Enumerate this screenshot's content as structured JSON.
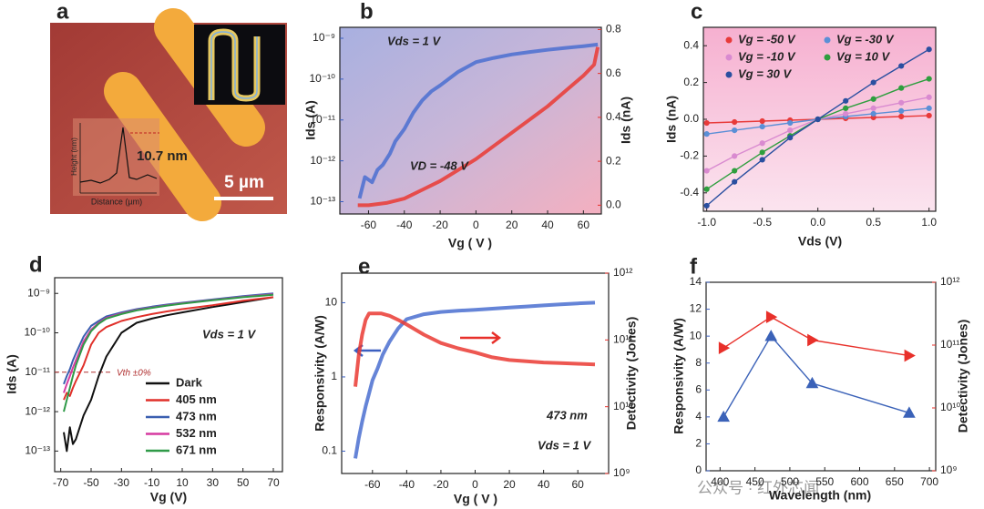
{
  "panel_a": {
    "panel": "a",
    "height_label": "10.7 nm",
    "scale_bar": "5 µm",
    "inset_ylabel": "Height (nm)",
    "inset_xlabel": "Distance (µm)"
  },
  "chart_data": [
    {
      "type": "line",
      "panel": "b",
      "xlabel": "Vg ( V )",
      "ylabel": "Ids (A)",
      "y2label": "Ids (nA)",
      "ycolor": "#3b5fc0",
      "y2color": "#e8302a",
      "annotations": [
        "Vds = 1 V",
        "VD = -48 V"
      ],
      "xlim": [
        -76,
        70
      ],
      "xticks": [
        -60,
        -40,
        -20,
        0,
        20,
        40,
        60
      ],
      "ylog": true,
      "ylim": [
        5e-14,
        1.85e-09
      ],
      "yticks": [
        {
          "value": 1e-13,
          "label": "10⁻¹³"
        },
        {
          "value": 1e-12,
          "label": "10⁻¹²"
        },
        {
          "value": 1e-11,
          "label": "10⁻¹¹"
        },
        {
          "value": 1e-10,
          "label": "10⁻¹⁰"
        },
        {
          "value": 1e-09,
          "label": "10⁻⁹"
        }
      ],
      "y2lim": [
        -0.04,
        0.81
      ],
      "y2ticks": [
        {
          "value": 0,
          "label": "0.0"
        },
        0.2,
        0.4,
        0.6,
        0.8
      ],
      "series": [
        {
          "color": "#4a6fd0",
          "style": "line",
          "x": [
            -65,
            -62,
            -58,
            -55,
            -52,
            -48,
            -45,
            -40,
            -35,
            -30,
            -25,
            -20,
            -10,
            0,
            10,
            20,
            30,
            40,
            50,
            60,
            68
          ],
          "values": [
            1.2e-13,
            4e-13,
            3e-13,
            6e-13,
            8e-13,
            1.5e-12,
            3e-12,
            6e-12,
            1.5e-11,
            3e-11,
            5e-11,
            7e-11,
            1.5e-10,
            2.6e-10,
            3.3e-10,
            4e-10,
            4.6e-10,
            5.2e-10,
            5.8e-10,
            6.4e-10,
            7e-10
          ]
        },
        {
          "color": "#ea3a32",
          "style": "line",
          "axis": "y2",
          "x": [
            -66,
            -60,
            -50,
            -40,
            -30,
            -20,
            -10,
            0,
            10,
            20,
            30,
            40,
            50,
            60,
            66,
            68
          ],
          "values": [
            0,
            0,
            0.01,
            0.03,
            0.07,
            0.11,
            0.16,
            0.21,
            0.27,
            0.33,
            0.39,
            0.45,
            0.52,
            0.59,
            0.64,
            0.72
          ]
        }
      ]
    },
    {
      "type": "line",
      "panel": "c",
      "xlabel": "Vds (V)",
      "ylabel": "Ids (nA)",
      "legend": "upper left",
      "xlim": [
        -1.03,
        1.06
      ],
      "xticks": [
        {
          "value": -1,
          "label": "-1.0"
        },
        -0.5,
        {
          "value": 0,
          "label": "0.0"
        },
        0.5,
        {
          "value": 1,
          "label": "1.0"
        }
      ],
      "ylim": [
        -0.5,
        0.5
      ],
      "yticks": [
        -0.4,
        -0.2,
        {
          "value": 0,
          "label": "0.0"
        },
        0.2,
        0.4
      ],
      "series": [
        {
          "name": "Vg = -50 V",
          "color": "#e83a3a",
          "style": "line-markers",
          "marker": "circle",
          "x": [
            -1,
            -0.75,
            -0.5,
            -0.25,
            0,
            0.25,
            0.5,
            0.75,
            1
          ],
          "values": [
            -0.02,
            -0.015,
            -0.01,
            -0.005,
            0,
            0.005,
            0.01,
            0.015,
            0.02
          ]
        },
        {
          "name": "Vg = -30 V",
          "color": "#5b8fd6",
          "style": "line-markers",
          "marker": "circle",
          "x": [
            -1,
            -0.75,
            -0.5,
            -0.25,
            0,
            0.25,
            0.5,
            0.75,
            1
          ],
          "values": [
            -0.08,
            -0.06,
            -0.04,
            -0.02,
            0,
            0.015,
            0.03,
            0.045,
            0.06
          ]
        },
        {
          "name": "Vg = -10 V",
          "color": "#d98ad0",
          "style": "line-markers",
          "marker": "circle",
          "x": [
            -1,
            -0.75,
            -0.5,
            -0.25,
            0,
            0.25,
            0.5,
            0.75,
            1
          ],
          "values": [
            -0.28,
            -0.2,
            -0.13,
            -0.06,
            0,
            0.03,
            0.06,
            0.09,
            0.12
          ]
        },
        {
          "name": "Vg = 10 V",
          "color": "#2e9e3e",
          "style": "line-markers",
          "marker": "circle",
          "x": [
            -1,
            -0.75,
            -0.5,
            -0.25,
            0,
            0.25,
            0.5,
            0.75,
            1
          ],
          "values": [
            -0.38,
            -0.28,
            -0.18,
            -0.09,
            0,
            0.06,
            0.11,
            0.17,
            0.22
          ]
        },
        {
          "name": "Vg = 30 V",
          "color": "#2a4fa0",
          "style": "line-markers",
          "marker": "circle",
          "x": [
            -1,
            -0.75,
            -0.5,
            -0.25,
            0,
            0.25,
            0.5,
            0.75,
            1
          ],
          "values": [
            -0.47,
            -0.34,
            -0.22,
            -0.1,
            0,
            0.1,
            0.2,
            0.29,
            0.38
          ]
        }
      ]
    },
    {
      "type": "line",
      "panel": "d",
      "xlabel": "Vg (V)",
      "ylabel": "Ids (A)",
      "legend": "lower right",
      "annotations": [
        "Vds = 1 V",
        "Vth ±0%"
      ],
      "ref_value": 1e-11,
      "xlim": [
        -74,
        76
      ],
      "xticks": [
        -70,
        -50,
        -30,
        -10,
        10,
        30,
        50,
        70
      ],
      "ylog": true,
      "ylim": [
        3e-14,
        2.5e-09
      ],
      "yticks": [
        {
          "value": 1e-13,
          "label": "10⁻¹³"
        },
        {
          "value": 1e-12,
          "label": "10⁻¹²"
        },
        {
          "value": 1e-11,
          "label": "10⁻¹¹"
        },
        {
          "value": 1e-10,
          "label": "10⁻¹⁰"
        },
        {
          "value": 1e-09,
          "label": "10⁻⁹"
        }
      ],
      "series": [
        {
          "name": "Dark",
          "color": "#111111",
          "style": "line",
          "x": [
            -68,
            -66,
            -64,
            -62,
            -60,
            -55,
            -50,
            -45,
            -40,
            -30,
            -20,
            -10,
            0,
            10,
            30,
            50,
            70
          ],
          "values": [
            3e-13,
            1e-13,
            4e-13,
            1.5e-13,
            2e-13,
            8e-13,
            2e-12,
            8e-12,
            2.5e-11,
            1e-10,
            1.8e-10,
            2.3e-10,
            2.8e-10,
            3.3e-10,
            4.5e-10,
            6e-10,
            8e-10
          ]
        },
        {
          "name": "405 nm",
          "color": "#e0302a",
          "style": "line",
          "x": [
            -68,
            -66,
            -64,
            -62,
            -60,
            -55,
            -50,
            -45,
            -40,
            -30,
            -20,
            -10,
            0,
            10,
            30,
            50,
            70
          ],
          "values": [
            2e-12,
            3e-12,
            2.5e-12,
            4e-12,
            6e-12,
            1.5e-11,
            5e-11,
            1e-10,
            1.4e-10,
            2e-10,
            2.5e-10,
            3e-10,
            3.5e-10,
            4e-10,
            5e-10,
            6.5e-10,
            8e-10
          ]
        },
        {
          "name": "473 nm",
          "color": "#3a5fb0",
          "style": "line",
          "x": [
            -68,
            -66,
            -64,
            -62,
            -60,
            -55,
            -50,
            -45,
            -40,
            -30,
            -20,
            -10,
            0,
            10,
            30,
            50,
            70
          ],
          "values": [
            5e-12,
            8e-12,
            1.2e-11,
            2e-11,
            3e-11,
            8e-11,
            1.5e-10,
            2e-10,
            2.6e-10,
            3.3e-10,
            4e-10,
            4.6e-10,
            5.2e-10,
            5.8e-10,
            7e-10,
            8.5e-10,
            1e-09
          ]
        },
        {
          "name": "532 nm",
          "color": "#d63aa0",
          "style": "line",
          "x": [
            -68,
            -66,
            -64,
            -62,
            -60,
            -55,
            -50,
            -45,
            -40,
            -30,
            -20,
            -10,
            0,
            10,
            30,
            50,
            70
          ],
          "values": [
            3e-12,
            5e-12,
            8e-12,
            1.3e-11,
            2e-11,
            6e-11,
            1.2e-10,
            1.8e-10,
            2.4e-10,
            3.1e-10,
            3.8e-10,
            4.4e-10,
            5e-10,
            5.6e-10,
            6.8e-10,
            8.2e-10,
            9.5e-10
          ]
        },
        {
          "name": "671 nm",
          "color": "#2f9a48",
          "style": "line",
          "x": [
            -68,
            -66,
            -64,
            -62,
            -60,
            -55,
            -50,
            -45,
            -40,
            -30,
            -20,
            -10,
            0,
            10,
            30,
            50,
            70
          ],
          "values": [
            1e-12,
            2e-12,
            4e-12,
            8e-12,
            1.5e-11,
            5e-11,
            1.1e-10,
            1.7e-10,
            2.3e-10,
            3e-10,
            3.7e-10,
            4.3e-10,
            4.9e-10,
            5.5e-10,
            6.7e-10,
            8e-10,
            9.2e-10
          ]
        }
      ]
    },
    {
      "type": "line",
      "panel": "e",
      "xlabel": "Vg ( V )",
      "ylabel": "Responsivity (A/W)",
      "y2label": "Detectivity (Jones)",
      "ycolor": "#3b5fc0",
      "y2color": "#e8302a",
      "annotations": [
        "473 nm",
        "Vds = 1 V"
      ],
      "xlim": [
        -78,
        78
      ],
      "xticks": [
        -60,
        -40,
        -20,
        0,
        20,
        40,
        60
      ],
      "ylog": true,
      "ylim": [
        0.05,
        25
      ],
      "yticks": [
        0.1,
        1,
        10
      ],
      "y2log": true,
      "y2lim": [
        1000000000.0,
        1000000000000.0
      ],
      "y2ticks": [
        {
          "value": 1000000000.0,
          "label": "10⁹"
        },
        {
          "value": 10000000000.0,
          "label": "10¹⁰"
        },
        {
          "value": 100000000000.0,
          "label": "10¹¹"
        },
        {
          "value": 1000000000000.0,
          "label": "10¹²"
        }
      ],
      "series": [
        {
          "color": "#4a6fd0",
          "style": "line",
          "x": [
            -70,
            -68,
            -66,
            -64,
            -62,
            -60,
            -57,
            -54,
            -50,
            -45,
            -40,
            -30,
            -20,
            -10,
            0,
            10,
            20,
            30,
            40,
            50,
            60,
            70
          ],
          "values": [
            0.08,
            0.15,
            0.25,
            0.4,
            0.6,
            0.9,
            1.3,
            2,
            3,
            4.5,
            6,
            7,
            7.5,
            7.8,
            8,
            8.3,
            8.6,
            8.9,
            9.2,
            9.5,
            9.8,
            10
          ]
        },
        {
          "color": "#ea3a32",
          "style": "line",
          "axis": "y2",
          "x": [
            -70,
            -68,
            -66,
            -64,
            -62,
            -60,
            -55,
            -50,
            -45,
            -40,
            -30,
            -20,
            -10,
            0,
            10,
            20,
            30,
            40,
            50,
            60,
            70
          ],
          "values": [
            20000000000.0,
            60000000000.0,
            120000000000.0,
            200000000000.0,
            250000000000.0,
            250000000000.0,
            250000000000.0,
            230000000000.0,
            200000000000.0,
            170000000000.0,
            120000000000.0,
            90000000000.0,
            75000000000.0,
            65000000000.0,
            55000000000.0,
            50000000000.0,
            48000000000.0,
            46000000000.0,
            45000000000.0,
            44000000000.0,
            43000000000.0
          ]
        }
      ]
    },
    {
      "type": "line",
      "panel": "f",
      "xlabel": "Wavelength (nm)",
      "ylabel": "Responsivity (A/W)",
      "y2label": "Detectivity (Jones)",
      "ycolor": "#3b5fc0",
      "y2color": "#e8302a",
      "xlim": [
        380,
        709
      ],
      "xticks": [
        400,
        450,
        500,
        550,
        600,
        650,
        700
      ],
      "ylim": [
        0,
        14
      ],
      "yticks": [
        0,
        2,
        4,
        6,
        8,
        10,
        12,
        14
      ],
      "y2log": true,
      "y2lim": [
        1000000000.0,
        1000000000000.0
      ],
      "y2ticks": [
        {
          "value": 1000000000.0,
          "label": "10⁹"
        },
        {
          "value": 10000000000.0,
          "label": "10¹⁰"
        },
        {
          "value": 100000000000.0,
          "label": "10¹¹"
        },
        {
          "value": 1000000000000.0,
          "label": "10¹²"
        }
      ],
      "series": [
        {
          "color": "#3b62b8",
          "style": "line-markers",
          "marker": "triangle-up",
          "x": [
            405,
            473,
            532,
            671
          ],
          "values": [
            4,
            10,
            6.5,
            4.3
          ]
        },
        {
          "color": "#e8302a",
          "style": "line-markers",
          "marker": "triangle-right",
          "axis": "y2",
          "x": [
            405,
            473,
            532,
            671
          ],
          "values": [
            90000000000.0,
            280000000000.0,
            120000000000.0,
            68000000000.0
          ]
        }
      ]
    }
  ],
  "watermark": "公众号 · 红外芯闻"
}
